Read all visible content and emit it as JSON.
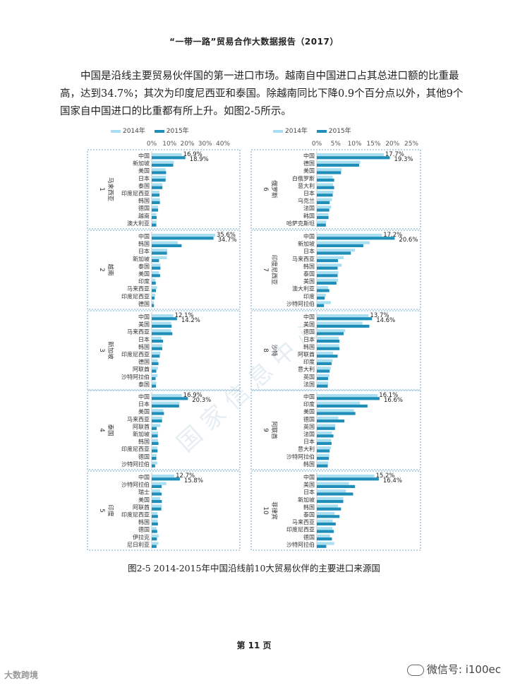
{
  "header": "“一带一路”贸易合作大数据报告（2017）",
  "paragraph": "中国是沿线主要贸易伙伴国的第一进口市场。越南自中国进口占其总进口额的比重最高，达到34.7%；其次为印度尼西亚和泰国。除越南同比下降0.9个百分点以外，其他9个国家自中国进口的比重都有所上升。如图2-5所示。",
  "legend": {
    "s2014": "2014年",
    "s2015": "2015年"
  },
  "colors": {
    "c2014": "#a9dff0",
    "c2015": "#1f8eb8",
    "border": "#4a90b8"
  },
  "caption": "图2-5   2014-2015年中国沿线前10大贸易伙伴的主要进口来源国",
  "page_number": "第 11 页",
  "watermark": "国 家 信 息 中 心",
  "footer": {
    "wechat": "微信号: i100ec",
    "logo": "大数跨境"
  },
  "chart_data": [
    {
      "type": "bar",
      "orientation": "horizontal",
      "axis_ticks": [
        "0%",
        "10%",
        "20%",
        "30%",
        "40%"
      ],
      "xlim": [
        0,
        40
      ],
      "panels": [
        {
          "rank": "1",
          "country": "马来西亚",
          "categories": [
            "中国",
            "新加坡",
            "美国",
            "日本",
            "泰国",
            "印度尼西亚",
            "韩国",
            "德国",
            "越南",
            "澳大利亚"
          ],
          "values_2014": [
            16.9,
            12.5,
            7.8,
            7.9,
            6.0,
            4.3,
            4.6,
            3.5,
            2.6,
            2.7
          ],
          "values_2015": [
            18.9,
            12.1,
            8.1,
            7.8,
            6.0,
            4.4,
            4.6,
            3.6,
            2.8,
            2.6
          ],
          "labels": [
            "16.9%",
            "18.9%"
          ]
        },
        {
          "rank": "2",
          "country": "越南",
          "categories": [
            "中国",
            "韩国",
            "日本",
            "新加坡",
            "泰国",
            "美国",
            "印度",
            "马来西亚",
            "印度尼西亚",
            "德国"
          ],
          "values_2014": [
            35.6,
            14.7,
            8.7,
            8.5,
            4.9,
            4.1,
            2.1,
            3.0,
            2.0,
            1.2
          ],
          "values_2015": [
            34.7,
            16.8,
            8.6,
            4.1,
            4.9,
            4.7,
            2.3,
            2.4,
            1.6,
            1.3
          ],
          "labels": [
            "35.6%",
            "34.7%"
          ]
        },
        {
          "rank": "3",
          "country": "新加坡",
          "categories": [
            "中国",
            "美国",
            "马来西亚",
            "日本",
            "韩国",
            "印度尼西亚",
            "德国",
            "阿联酋",
            "沙特阿拉伯",
            "泰国"
          ],
          "values_2014": [
            12.1,
            10.9,
            10.9,
            5.5,
            6.0,
            4.9,
            3.3,
            3.5,
            3.2,
            2.6
          ],
          "values_2015": [
            14.2,
            11.2,
            11.6,
            6.4,
            5.9,
            4.5,
            3.8,
            2.6,
            2.2,
            2.4
          ],
          "labels": [
            "12.1%",
            "14.2%"
          ]
        },
        {
          "rank": "4",
          "country": "泰国",
          "categories": [
            "中国",
            "日本",
            "美国",
            "马来西亚",
            "阿联酋",
            "新加坡",
            "韩国",
            "印度尼西亚",
            "德国",
            "沙特阿拉伯"
          ],
          "values_2014": [
            16.9,
            15.6,
            6.5,
            5.9,
            4.9,
            3.6,
            3.5,
            3.1,
            2.8,
            3.1
          ],
          "values_2015": [
            20.3,
            15.4,
            6.9,
            5.8,
            2.8,
            3.4,
            3.8,
            3.3,
            2.6,
            1.9
          ],
          "labels": [
            "16.9%",
            "20.3%"
          ]
        },
        {
          "rank": "5",
          "country": "印度",
          "categories": [
            "中国",
            "沙特阿拉伯",
            "瑞士",
            "美国",
            "阿联酋",
            "印度尼西亚",
            "韩国",
            "德国",
            "伊拉克",
            "尼日利亚"
          ],
          "values_2014": [
            12.7,
            8.2,
            4.7,
            4.8,
            5.7,
            3.2,
            3.3,
            2.7,
            3.9,
            3.8
          ],
          "values_2015": [
            15.8,
            5.6,
            5.6,
            5.7,
            5.4,
            3.5,
            3.5,
            3.1,
            2.9,
            2.7
          ],
          "labels": [
            "12.7%",
            "15.8%"
          ]
        }
      ]
    },
    {
      "type": "bar",
      "orientation": "horizontal",
      "axis_ticks": [
        "0%",
        "5%",
        "10%",
        "15%",
        "20%",
        "25%"
      ],
      "xlim": [
        0,
        25
      ],
      "panels": [
        {
          "rank": "6",
          "country": "俄罗斯",
          "categories": [
            "中国",
            "德国",
            "美国",
            "白俄罗斯",
            "意大利",
            "日本",
            "乌克兰",
            "法国",
            "韩国",
            "哈萨克斯坦"
          ],
          "values_2014": [
            17.7,
            11.5,
            6.6,
            4.2,
            4.3,
            4.4,
            4.0,
            3.8,
            3.1,
            2.5
          ],
          "values_2015": [
            19.3,
            11.2,
            6.4,
            4.6,
            4.6,
            4.2,
            3.4,
            3.3,
            3.1,
            2.4
          ],
          "labels": [
            "17.7%",
            "19.3%"
          ]
        },
        {
          "rank": "7",
          "country": "印度尼西亚",
          "categories": [
            "中国",
            "新加坡",
            "日本",
            "马来西亚",
            "韩国",
            "泰国",
            "美国",
            "澳大利亚",
            "印度",
            "沙特阿拉伯"
          ],
          "values_2014": [
            17.2,
            14.0,
            10.1,
            7.1,
            6.6,
            5.7,
            5.6,
            3.0,
            2.4,
            3.7
          ],
          "values_2015": [
            20.6,
            12.3,
            9.0,
            5.6,
            5.5,
            5.5,
            5.2,
            3.3,
            2.1,
            1.9
          ],
          "labels": [
            "17.2%",
            "20.6%"
          ]
        },
        {
          "rank": "8",
          "country": "沙特",
          "categories": [
            "中国",
            "美国",
            "德国",
            "日本",
            "韩国",
            "阿联酋",
            "印度",
            "意大利",
            "英国",
            "法国"
          ],
          "values_2014": [
            13.7,
            12.1,
            7.5,
            5.8,
            5.9,
            4.3,
            4.2,
            3.7,
            3.3,
            3.0
          ],
          "values_2015": [
            14.6,
            13.9,
            7.1,
            6.0,
            6.0,
            5.5,
            3.9,
            3.4,
            3.0,
            2.9
          ],
          "labels": [
            "13.7%",
            "14.6%"
          ]
        },
        {
          "rank": "9",
          "country": "阿联酋",
          "categories": [
            "中国",
            "印度",
            "美国",
            "德国",
            "英国",
            "法国",
            "日本",
            "意大利",
            "沙特阿拉伯",
            "韩国"
          ],
          "values_2014": [
            16.1,
            11.4,
            9.8,
            5.7,
            4.9,
            4.0,
            3.8,
            3.7,
            3.3,
            3.0
          ],
          "values_2015": [
            16.6,
            13.4,
            10.2,
            7.3,
            4.8,
            4.4,
            3.9,
            3.4,
            3.2,
            2.9
          ],
          "labels": [
            "16.1%",
            "16.6%"
          ]
        },
        {
          "rank": "10",
          "country": "菲律宾",
          "categories": [
            "中国",
            "美国",
            "日本",
            "新加坡",
            "韩国",
            "泰国",
            "马来西亚",
            "印度尼西亚",
            "德国",
            "沙特阿拉伯"
          ],
          "values_2014": [
            15.2,
            8.5,
            7.7,
            7.0,
            5.6,
            4.7,
            4.2,
            4.1,
            3.5,
            4.6
          ],
          "values_2015": [
            16.4,
            10.1,
            9.6,
            7.0,
            6.4,
            6.0,
            5.0,
            4.5,
            4.0,
            2.5
          ],
          "labels": [
            "15.2%",
            "16.4%"
          ]
        }
      ]
    }
  ]
}
